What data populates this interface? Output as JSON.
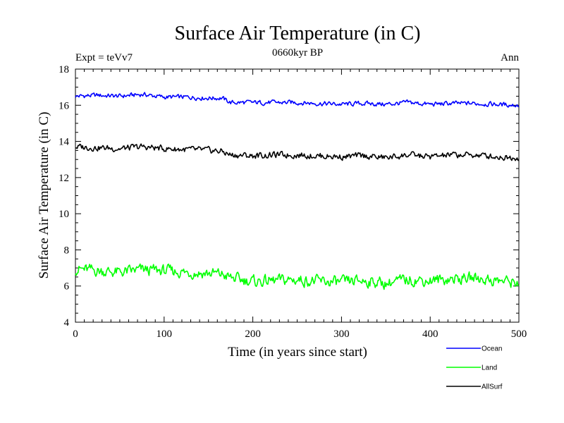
{
  "chart_data": {
    "type": "line",
    "title": "Surface Air Temperature (in C)",
    "subtitle": "0660kyr BP",
    "left_label": "Expt = teVv7",
    "right_label": "Ann",
    "xlabel": "Time (in years since start)",
    "ylabel": "Surface Air Temperature (in C)",
    "xlim": [
      0,
      500
    ],
    "ylim": [
      4,
      18
    ],
    "x_ticks": [
      "0",
      "100",
      "200",
      "300",
      "400",
      "500"
    ],
    "y_ticks": [
      "4",
      "6",
      "8",
      "10",
      "12",
      "14",
      "16",
      "18"
    ],
    "grid": false,
    "legend_position": "bottom-right",
    "series": [
      {
        "name": "Ocean",
        "color": "#0000ff",
        "x": [
          0,
          25,
          50,
          75,
          100,
          125,
          150,
          165,
          175,
          200,
          225,
          250,
          275,
          300,
          325,
          350,
          375,
          400,
          425,
          450,
          475,
          500
        ],
        "values": [
          16.5,
          16.55,
          16.5,
          16.6,
          16.45,
          16.45,
          16.4,
          16.4,
          16.15,
          16.15,
          16.15,
          16.15,
          16.1,
          16.05,
          16.1,
          16.05,
          16.15,
          16.05,
          16.1,
          16.1,
          16.05,
          16.0
        ]
      },
      {
        "name": "Land",
        "color": "#00ff00",
        "x": [
          0,
          25,
          50,
          75,
          100,
          125,
          150,
          165,
          175,
          200,
          225,
          250,
          275,
          300,
          325,
          350,
          375,
          400,
          425,
          450,
          475,
          500
        ],
        "values": [
          6.95,
          6.85,
          6.75,
          6.9,
          6.85,
          6.75,
          6.7,
          6.65,
          6.45,
          6.25,
          6.3,
          6.35,
          6.25,
          6.2,
          6.3,
          6.15,
          6.35,
          6.3,
          6.4,
          6.45,
          6.3,
          6.2
        ]
      },
      {
        "name": "AllSurf",
        "color": "#000000",
        "x": [
          0,
          25,
          50,
          75,
          100,
          125,
          150,
          165,
          175,
          200,
          225,
          250,
          275,
          300,
          325,
          350,
          375,
          400,
          425,
          450,
          475,
          500
        ],
        "values": [
          13.7,
          13.65,
          13.6,
          13.7,
          13.6,
          13.55,
          13.5,
          13.45,
          13.25,
          13.2,
          13.25,
          13.25,
          13.2,
          13.15,
          13.2,
          13.1,
          13.25,
          13.15,
          13.25,
          13.25,
          13.15,
          13.1
        ]
      }
    ]
  }
}
